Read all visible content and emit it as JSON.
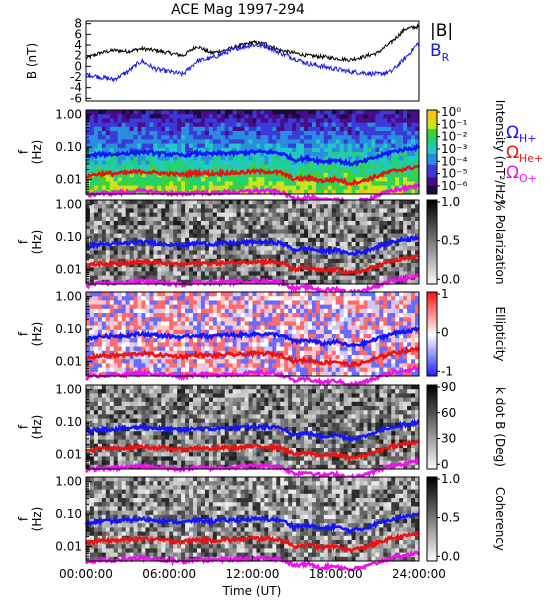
{
  "title": "ACE Mag 1997-294",
  "xaxis": {
    "label": "Time (UT)",
    "ticks": [
      "00:00:00",
      "06:00:00",
      "12:00:00",
      "18:00:00",
      "24:00:00"
    ]
  },
  "chart_data": [
    {
      "type": "line",
      "panel": "field",
      "ylabel": "B (nT)",
      "ylim": [
        -6.5,
        8.5
      ],
      "yticks": [
        "8",
        "6",
        "4",
        "2",
        "0",
        "-2",
        "-4",
        "-6"
      ],
      "x_hours": [
        0,
        1,
        2,
        3,
        4,
        5,
        6,
        7,
        8,
        9,
        10,
        11,
        12,
        13,
        14,
        15,
        16,
        17,
        18,
        19,
        20,
        21,
        22,
        23,
        24
      ],
      "series": [
        {
          "name": "|B|",
          "color": "#000000",
          "values": [
            1.5,
            2.5,
            3.0,
            2.8,
            3.3,
            3.0,
            2.5,
            2.0,
            3.8,
            2.5,
            3.0,
            3.8,
            4.5,
            4.2,
            3.0,
            2.5,
            2.0,
            1.8,
            1.5,
            1.2,
            1.8,
            2.5,
            4.5,
            7.0,
            7.5
          ]
        },
        {
          "name": "B_R",
          "color": "#1a1ae6",
          "values": [
            -1.5,
            -2.0,
            -2.5,
            -1.0,
            1.0,
            -0.5,
            -1.0,
            -1.5,
            1.0,
            1.5,
            2.5,
            3.5,
            4.0,
            3.8,
            2.5,
            1.5,
            0.5,
            0.0,
            -0.5,
            -1.0,
            -1.2,
            -1.5,
            -1.0,
            1.5,
            4.5
          ]
        }
      ]
    },
    {
      "type": "heatmap",
      "panel": "intensity",
      "ylabel": "f (Hz)",
      "yticks": [
        "1.00",
        "0.10",
        "0.01"
      ],
      "colorbar": {
        "label": "Intensity (nT²/Hz)",
        "ticks": [
          "10⁰",
          "10⁻¹",
          "10⁻²",
          "10⁻³",
          "10⁻⁴",
          "10⁻⁵",
          "10⁻⁶"
        ]
      }
    },
    {
      "type": "heatmap",
      "panel": "polarization",
      "ylabel": "f (Hz)",
      "yticks": [
        "1.00",
        "0.10",
        "0.01"
      ],
      "colorbar": {
        "label": "% Polarization",
        "ticks": [
          "1.0",
          "0.5",
          "0.0"
        ]
      }
    },
    {
      "type": "heatmap",
      "panel": "ellipticity",
      "ylabel": "f (Hz)",
      "yticks": [
        "1.00",
        "0.10",
        "0.01"
      ],
      "colorbar": {
        "label": "Ellipticity",
        "ticks": [
          "1",
          "0",
          "-1"
        ]
      }
    },
    {
      "type": "heatmap",
      "panel": "kdotb",
      "ylabel": "f (Hz)",
      "yticks": [
        "1.00",
        "0.10",
        "0.01"
      ],
      "colorbar": {
        "label": "k dot B (Deg)",
        "ticks": [
          "90",
          "60",
          "30",
          "0"
        ]
      }
    },
    {
      "type": "heatmap",
      "panel": "coherency",
      "ylabel": "f (Hz)",
      "yticks": [
        "1.00",
        "0.10",
        "0.01"
      ],
      "colorbar": {
        "label": "Coherency",
        "ticks": [
          "1.0",
          "0.5",
          "0.0"
        ]
      }
    }
  ],
  "gyro": {
    "x_hours": [
      0,
      1,
      2,
      3,
      4,
      5,
      6,
      7,
      8,
      9,
      10,
      11,
      12,
      13,
      14,
      15,
      16,
      17,
      18,
      19,
      20,
      21,
      22,
      23,
      24
    ],
    "lines": [
      {
        "name": "ΩH+",
        "color": "#1414ff",
        "values": [
          0.05,
          0.06,
          0.06,
          0.065,
          0.07,
          0.065,
          0.06,
          0.055,
          0.065,
          0.06,
          0.065,
          0.065,
          0.07,
          0.07,
          0.065,
          0.04,
          0.045,
          0.035,
          0.04,
          0.03,
          0.035,
          0.05,
          0.07,
          0.085,
          0.1
        ]
      },
      {
        "name": "ΩHe+",
        "color": "#ee1111",
        "values": [
          0.0125,
          0.015,
          0.015,
          0.016,
          0.0175,
          0.016,
          0.015,
          0.014,
          0.016,
          0.015,
          0.016,
          0.016,
          0.0175,
          0.0175,
          0.016,
          0.01,
          0.011,
          0.009,
          0.01,
          0.0075,
          0.009,
          0.0125,
          0.0175,
          0.021,
          0.025
        ]
      },
      {
        "name": "ΩO+",
        "color": "#ee11ee",
        "values": [
          0.0031,
          0.0037,
          0.0037,
          0.004,
          0.0044,
          0.004,
          0.0037,
          0.0034,
          0.004,
          0.0037,
          0.004,
          0.004,
          0.0044,
          0.0044,
          0.004,
          0.0025,
          0.0028,
          0.0022,
          0.0025,
          0.0019,
          0.0022,
          0.0031,
          0.0044,
          0.0053,
          0.0062
        ]
      }
    ]
  },
  "legend": {
    "bmag": "|B|",
    "br_main": "B",
    "br_sub": "R",
    "omega": "Ω",
    "h": "H+",
    "he": "He+",
    "o": "O+"
  }
}
